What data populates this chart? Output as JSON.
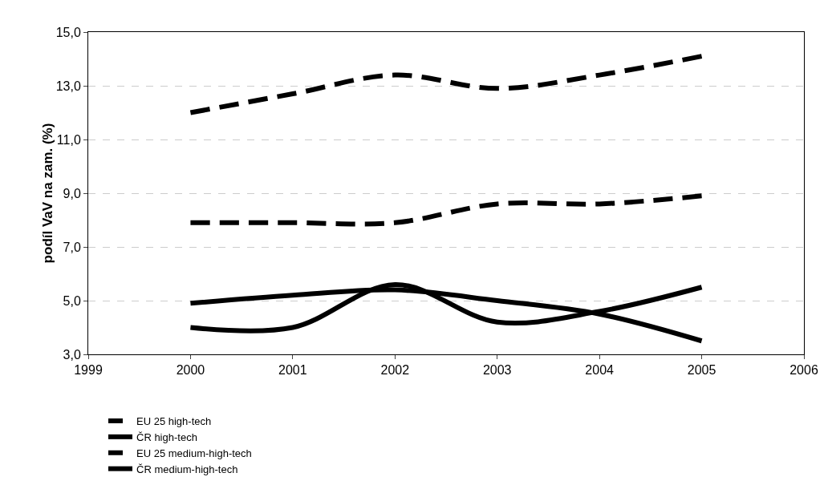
{
  "chart_data": {
    "type": "line",
    "ylabel": "podíl VaV na zam. (%)",
    "x": [
      2000,
      2001,
      2002,
      2003,
      2004,
      2005
    ],
    "series": [
      {
        "name": "EU 25 high-tech",
        "color": "#000000",
        "line_style": "dashed",
        "values": [
          12.0,
          12.7,
          13.4,
          12.9,
          13.4,
          14.1
        ]
      },
      {
        "name": "ČR high-tech",
        "color": "#000000",
        "line_style": "solid",
        "values": [
          4.0,
          4.0,
          5.6,
          4.2,
          4.6,
          5.5
        ]
      },
      {
        "name": "EU 25 medium-high-tech",
        "color": "#000000",
        "line_style": "dashed",
        "values": [
          7.9,
          7.9,
          7.9,
          8.6,
          8.6,
          8.9
        ]
      },
      {
        "name": "ČR medium-high-tech",
        "color": "#000000",
        "line_style": "solid",
        "values": [
          4.9,
          5.2,
          5.4,
          5.0,
          4.5,
          3.5
        ]
      }
    ],
    "xlim": [
      1999,
      2006
    ],
    "xticks": [
      1999,
      2000,
      2001,
      2002,
      2003,
      2004,
      2005,
      2006
    ],
    "ylim": [
      3,
      15
    ],
    "yticks": [
      {
        "value": 3,
        "label": "3,0"
      },
      {
        "value": 5,
        "label": "5,0"
      },
      {
        "value": 7,
        "label": "7,0"
      },
      {
        "value": 9,
        "label": "9,0"
      },
      {
        "value": 11,
        "label": "11,0"
      },
      {
        "value": 13,
        "label": "13,0"
      },
      {
        "value": 15,
        "label": "15,0"
      }
    ],
    "grid": "y",
    "legend": "bottom",
    "marker": "none"
  }
}
